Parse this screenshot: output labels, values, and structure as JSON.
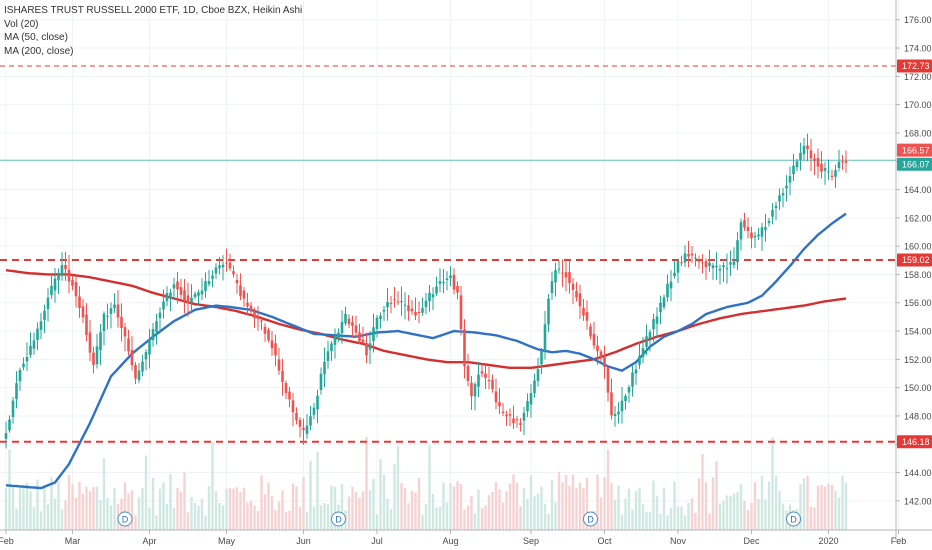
{
  "legend": {
    "title": "ISHARES TRUST RUSSELL 2000 ETF, 1D, Cboe BZX, Heikin Ashi",
    "vol": "Vol (20)",
    "ma50": "MA (50, close)",
    "ma200": "MA (200, close)"
  },
  "chart_data": {
    "type": "candlestick",
    "style": "Heikin Ashi",
    "colors": {
      "up": "#26a69a",
      "down": "#ef5350",
      "ma50": "#2f72c4",
      "ma200": "#d32f2f",
      "hline": "#e53935",
      "last_price_line": "#66c2b6",
      "vol_up": "#cfe8e2",
      "vol_down": "#f6d3d3"
    },
    "y_axis": {
      "min": 141,
      "max": 176.9,
      "ticks": [
        142,
        144,
        146,
        148,
        150,
        152,
        154,
        156,
        158,
        160,
        162,
        164,
        166,
        168,
        170,
        172,
        174,
        176
      ],
      "tick_labels": [
        "142.00",
        "144.00",
        "146.00",
        "148.00",
        "150.00",
        "152.00",
        "154.00",
        "156.00",
        "158.00",
        "160.00",
        "162.00",
        "164.00",
        "166.00",
        "168.00",
        "170.00",
        "172.00",
        "174.00",
        "176.00"
      ]
    },
    "x_axis": {
      "labels": [
        "Feb",
        "Mar",
        "Apr",
        "May",
        "Jun",
        "Jul",
        "Aug",
        "Sep",
        "Oct",
        "Nov",
        "Dec",
        "2020",
        "Feb"
      ],
      "label_bar_index": [
        0,
        19,
        41,
        63,
        85,
        106,
        127,
        150,
        171,
        192,
        213,
        235,
        255
      ]
    },
    "price_labels": [
      {
        "value": 172.73,
        "label": "172.73",
        "kind": "line"
      },
      {
        "value": 166.57,
        "label": "166.57",
        "kind": "last"
      },
      {
        "value": 166.07,
        "label": "166.07",
        "kind": "close"
      },
      {
        "value": 159.02,
        "label": "159.02",
        "kind": "line"
      },
      {
        "value": 146.18,
        "label": "146.18",
        "kind": "line"
      }
    ],
    "horizontal_lines": [
      172.73,
      159.02,
      146.18
    ],
    "last_price": 166.07,
    "dividend_markers": {
      "symbol": "D",
      "bar_index": [
        34,
        95,
        167,
        225
      ]
    },
    "anchors": [
      [
        0,
        146.8
      ],
      [
        4,
        151.5
      ],
      [
        8,
        153.2
      ],
      [
        12,
        156.5
      ],
      [
        16,
        158.6
      ],
      [
        19,
        157.3
      ],
      [
        22,
        155.0
      ],
      [
        25,
        151.5
      ],
      [
        28,
        155.0
      ],
      [
        31,
        155.8
      ],
      [
        34,
        153.5
      ],
      [
        37,
        150.5
      ],
      [
        40,
        152.5
      ],
      [
        44,
        155.5
      ],
      [
        48,
        157.4
      ],
      [
        52,
        156.0
      ],
      [
        56,
        157.0
      ],
      [
        60,
        158.4
      ],
      [
        63,
        159.0
      ],
      [
        66,
        157.2
      ],
      [
        70,
        155.2
      ],
      [
        73,
        154.5
      ],
      [
        76,
        153.0
      ],
      [
        79,
        150.5
      ],
      [
        82,
        148.2
      ],
      [
        85,
        146.8
      ],
      [
        88,
        148.5
      ],
      [
        91,
        152.0
      ],
      [
        94,
        153.5
      ],
      [
        97,
        155.0
      ],
      [
        100,
        154.0
      ],
      [
        103,
        152.5
      ],
      [
        106,
        154.8
      ],
      [
        109,
        156.0
      ],
      [
        112,
        156.2
      ],
      [
        115,
        155.6
      ],
      [
        118,
        155.2
      ],
      [
        121,
        156.5
      ],
      [
        124,
        157.5
      ],
      [
        127,
        157.8
      ],
      [
        129,
        156.5
      ],
      [
        131,
        151.5
      ],
      [
        133,
        149.5
      ],
      [
        135,
        151.0
      ],
      [
        138,
        150.5
      ],
      [
        141,
        148.5
      ],
      [
        144,
        147.8
      ],
      [
        147,
        147.5
      ],
      [
        150,
        149.5
      ],
      [
        153,
        152.5
      ],
      [
        155,
        156.5
      ],
      [
        157,
        158.4
      ],
      [
        160,
        158.0
      ],
      [
        163,
        156.5
      ],
      [
        166,
        154.5
      ],
      [
        169,
        152.5
      ],
      [
        171,
        151.5
      ],
      [
        173,
        148.0
      ],
      [
        175,
        148.5
      ],
      [
        177,
        149.5
      ],
      [
        180,
        151.5
      ],
      [
        183,
        153.5
      ],
      [
        186,
        155.2
      ],
      [
        189,
        157.2
      ],
      [
        192,
        158.8
      ],
      [
        195,
        159.5
      ],
      [
        199,
        158.8
      ],
      [
        203,
        158.4
      ],
      [
        206,
        158.5
      ],
      [
        208,
        159.0
      ],
      [
        210,
        161.8
      ],
      [
        212,
        161.0
      ],
      [
        214,
        160.5
      ],
      [
        217,
        161.5
      ],
      [
        220,
        163.0
      ],
      [
        223,
        164.5
      ],
      [
        226,
        166.0
      ],
      [
        228,
        167.0
      ],
      [
        230,
        166.3
      ],
      [
        233,
        165.5
      ],
      [
        236,
        165.0
      ],
      [
        238,
        165.8
      ],
      [
        240,
        166.1
      ]
    ],
    "volume_range": [
      0,
      10
    ],
    "volume_bars": 241,
    "volume_values_note": "relative heights",
    "ma50_anchors": [
      [
        0,
        143.1
      ],
      [
        10,
        142.9
      ],
      [
        14,
        143.3
      ],
      [
        18,
        144.6
      ],
      [
        24,
        147.5
      ],
      [
        30,
        150.8
      ],
      [
        36,
        152.4
      ],
      [
        42,
        153.6
      ],
      [
        48,
        154.7
      ],
      [
        54,
        155.5
      ],
      [
        60,
        155.8
      ],
      [
        64,
        155.7
      ],
      [
        70,
        155.5
      ],
      [
        76,
        155.0
      ],
      [
        82,
        154.4
      ],
      [
        88,
        153.8
      ],
      [
        94,
        153.7
      ],
      [
        100,
        153.6
      ],
      [
        106,
        153.9
      ],
      [
        112,
        154.0
      ],
      [
        118,
        153.7
      ],
      [
        122,
        153.5
      ],
      [
        128,
        154.0
      ],
      [
        134,
        153.9
      ],
      [
        140,
        153.7
      ],
      [
        146,
        153.3
      ],
      [
        152,
        152.7
      ],
      [
        156,
        152.5
      ],
      [
        160,
        152.6
      ],
      [
        164,
        152.4
      ],
      [
        168,
        152.0
      ],
      [
        172,
        151.5
      ],
      [
        176,
        151.2
      ],
      [
        180,
        151.8
      ],
      [
        184,
        152.9
      ],
      [
        188,
        153.6
      ],
      [
        192,
        154.0
      ],
      [
        196,
        154.5
      ],
      [
        200,
        155.2
      ],
      [
        206,
        155.7
      ],
      [
        212,
        156.0
      ],
      [
        216,
        156.5
      ],
      [
        220,
        157.5
      ],
      [
        224,
        158.6
      ],
      [
        228,
        159.8
      ],
      [
        232,
        160.8
      ],
      [
        236,
        161.6
      ],
      [
        240,
        162.3
      ]
    ],
    "ma200_anchors": [
      [
        0,
        158.3
      ],
      [
        6,
        158.1
      ],
      [
        12,
        158.0
      ],
      [
        18,
        158.0
      ],
      [
        24,
        157.8
      ],
      [
        30,
        157.5
      ],
      [
        36,
        157.2
      ],
      [
        42,
        156.7
      ],
      [
        48,
        156.3
      ],
      [
        54,
        155.9
      ],
      [
        60,
        155.7
      ],
      [
        66,
        155.4
      ],
      [
        72,
        155.0
      ],
      [
        78,
        154.5
      ],
      [
        84,
        154.1
      ],
      [
        90,
        153.8
      ],
      [
        96,
        153.4
      ],
      [
        102,
        153.1
      ],
      [
        108,
        152.6
      ],
      [
        114,
        152.3
      ],
      [
        120,
        152.0
      ],
      [
        126,
        151.8
      ],
      [
        132,
        151.8
      ],
      [
        138,
        151.6
      ],
      [
        144,
        151.4
      ],
      [
        150,
        151.4
      ],
      [
        156,
        151.6
      ],
      [
        162,
        151.8
      ],
      [
        168,
        152.0
      ],
      [
        174,
        152.5
      ],
      [
        180,
        153.1
      ],
      [
        186,
        153.6
      ],
      [
        192,
        154.0
      ],
      [
        198,
        154.5
      ],
      [
        204,
        154.9
      ],
      [
        210,
        155.2
      ],
      [
        216,
        155.4
      ],
      [
        222,
        155.6
      ],
      [
        228,
        155.8
      ],
      [
        234,
        156.1
      ],
      [
        240,
        156.3
      ]
    ]
  }
}
